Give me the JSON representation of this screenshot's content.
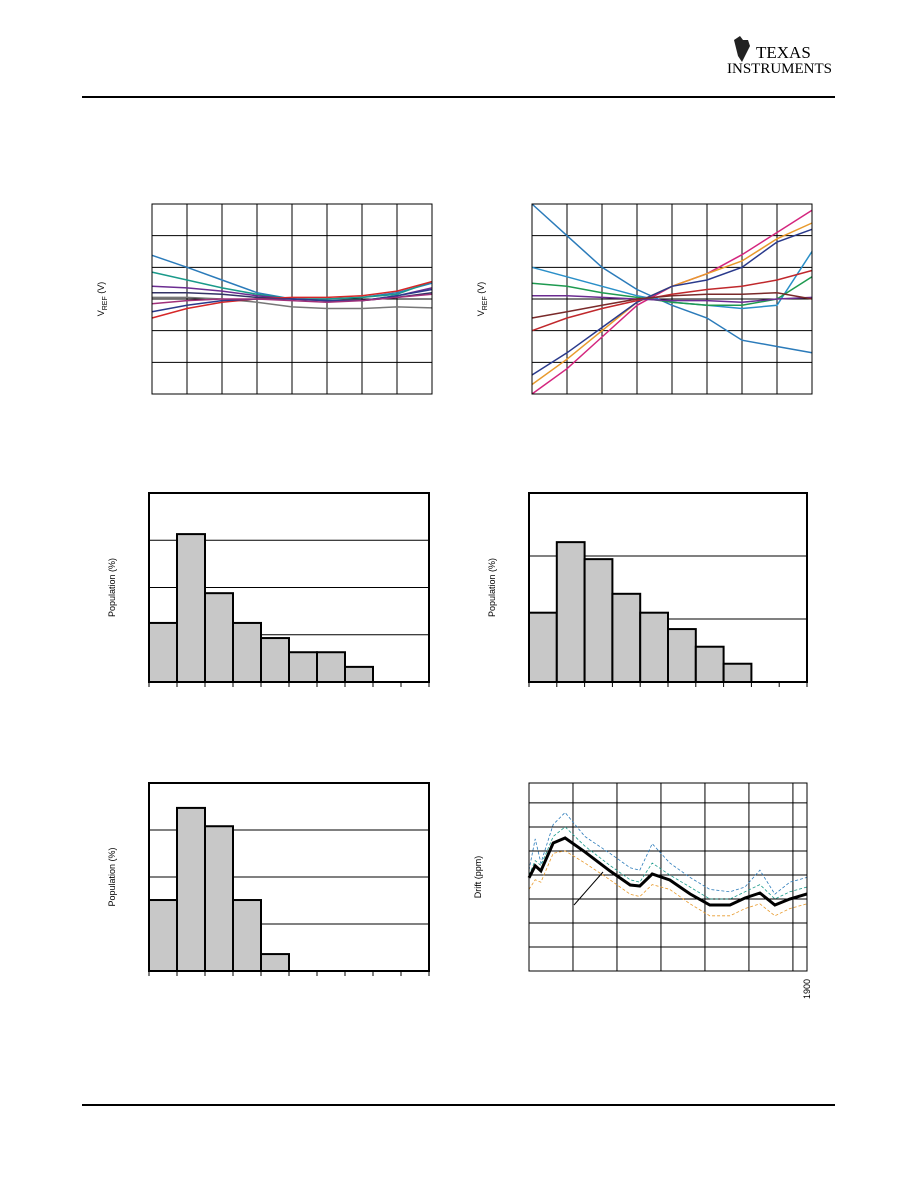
{
  "header": {
    "logo": [
      "TEXAS",
      "INSTRUMENTS"
    ]
  },
  "charts": [
    {
      "type": "line",
      "ylabel": {
        "main": "V",
        "sub": "REF",
        "unit": " (V)"
      },
      "x": [
        0,
        1,
        2,
        3,
        4,
        5,
        6,
        7,
        8
      ],
      "xlim": [
        0,
        8
      ],
      "xticks": [
        1,
        2,
        3,
        4,
        5,
        6,
        7
      ],
      "ylim": [
        0,
        6
      ],
      "yticks": [
        1,
        2,
        3,
        4,
        5
      ],
      "grid": true,
      "series": [
        {
          "color": "#2b7bba",
          "values": [
            4.38,
            4.0,
            3.6,
            3.2,
            3.0,
            3.0,
            3.05,
            3.2,
            3.5
          ]
        },
        {
          "color": "#1a9a8a",
          "values": [
            3.85,
            3.6,
            3.35,
            3.15,
            3.0,
            3.0,
            3.05,
            3.15,
            3.55
          ]
        },
        {
          "color": "#6b2c91",
          "values": [
            3.4,
            3.35,
            3.25,
            3.1,
            3.0,
            2.95,
            2.95,
            3.1,
            3.35
          ]
        },
        {
          "color": "#333366",
          "values": [
            3.2,
            3.2,
            3.15,
            3.05,
            3.0,
            2.95,
            2.95,
            3.05,
            3.2
          ]
        },
        {
          "color": "#777777",
          "values": [
            3.05,
            3.05,
            3.0,
            2.9,
            2.75,
            2.7,
            2.7,
            2.75,
            2.72
          ]
        },
        {
          "color": "#d62728",
          "values": [
            2.4,
            2.7,
            2.9,
            3.0,
            3.05,
            3.05,
            3.1,
            3.25,
            3.55
          ]
        },
        {
          "color": "#2a3a8c",
          "values": [
            2.6,
            2.8,
            2.95,
            3.0,
            3.0,
            2.95,
            2.95,
            3.1,
            3.3
          ]
        },
        {
          "color": "#a0307a",
          "values": [
            2.85,
            2.95,
            3.0,
            3.0,
            2.95,
            2.9,
            2.95,
            3.05,
            3.15
          ]
        }
      ]
    },
    {
      "type": "line",
      "ylabel": {
        "main": "V",
        "sub": "REF",
        "unit": " (V)"
      },
      "x": [
        0,
        1,
        2,
        3,
        4,
        5,
        6,
        7,
        8
      ],
      "xlim": [
        0,
        8
      ],
      "xticks": [
        1,
        2,
        3,
        4,
        5,
        6,
        7
      ],
      "ylim": [
        0,
        6
      ],
      "yticks": [
        1,
        2,
        3,
        4,
        5
      ],
      "grid": true,
      "series": [
        {
          "color": "#2b7bba",
          "values": [
            6.0,
            5.0,
            4.0,
            3.3,
            2.8,
            2.4,
            1.7,
            1.5,
            1.3
          ]
        },
        {
          "color": "#2a8fc8",
          "values": [
            4.0,
            3.7,
            3.4,
            3.1,
            2.9,
            2.8,
            2.7,
            2.8,
            4.5
          ]
        },
        {
          "color": "#d4267e",
          "values": [
            0.0,
            0.8,
            1.8,
            2.8,
            3.4,
            3.8,
            4.4,
            5.1,
            5.8
          ]
        },
        {
          "color": "#e89a2c",
          "values": [
            0.3,
            1.1,
            2.0,
            2.9,
            3.4,
            3.8,
            4.2,
            4.9,
            5.4
          ]
        },
        {
          "color": "#2a3a8c",
          "values": [
            0.6,
            1.3,
            2.1,
            2.9,
            3.4,
            3.6,
            4.0,
            4.8,
            5.2
          ]
        },
        {
          "color": "#c0282c",
          "values": [
            2.0,
            2.4,
            2.7,
            2.95,
            3.15,
            3.3,
            3.4,
            3.6,
            3.9
          ]
        },
        {
          "color": "#1e9a50",
          "values": [
            3.5,
            3.4,
            3.2,
            3.05,
            2.9,
            2.8,
            2.8,
            3.0,
            3.7
          ]
        },
        {
          "color": "#6b2c91",
          "values": [
            3.1,
            3.1,
            3.05,
            3.0,
            2.95,
            2.95,
            2.9,
            3.0,
            3.05
          ]
        },
        {
          "color": "#7a2a2a",
          "values": [
            2.4,
            2.6,
            2.8,
            3.0,
            3.1,
            3.15,
            3.15,
            3.2,
            3.0
          ]
        }
      ]
    },
    {
      "type": "histogram",
      "ylabel": "Population (%)",
      "bins": [
        0,
        1,
        2,
        3,
        4,
        5,
        6,
        7,
        8,
        9,
        10
      ],
      "values": [
        1.25,
        3.13,
        1.88,
        1.25,
        0.93,
        0.63,
        0.63,
        0.32,
        0,
        0
      ],
      "color": "#c8c8c8",
      "xlim": [
        0,
        10
      ],
      "ylim": [
        0,
        4
      ],
      "yticks": [
        1,
        2,
        3
      ],
      "grid": true
    },
    {
      "type": "histogram",
      "ylabel": "Population (%)",
      "bins": [
        0,
        1,
        2,
        3,
        4,
        5,
        6,
        7,
        8,
        9,
        10
      ],
      "values": [
        1.1,
        2.22,
        1.95,
        1.4,
        1.1,
        0.84,
        0.56,
        0.29,
        0,
        0
      ],
      "color": "#c8c8c8",
      "xlim": [
        0,
        10
      ],
      "ylim": [
        0,
        3
      ],
      "yticks": [
        1,
        2
      ],
      "grid": true
    },
    {
      "type": "histogram",
      "ylabel": "Population (%)",
      "bins": [
        0,
        1,
        2,
        3,
        4,
        5,
        6,
        7,
        8,
        9,
        10
      ],
      "values": [
        1.51,
        3.47,
        3.08,
        1.51,
        0.36,
        0,
        0,
        0,
        0,
        0
      ],
      "color": "#c8c8c8",
      "xlim": [
        0,
        10
      ],
      "ylim": [
        0,
        4
      ],
      "yticks": [
        1,
        2,
        3
      ],
      "grid": true
    },
    {
      "type": "line",
      "ylabel": "Drift (ppm)",
      "x": [
        0,
        0.14,
        0.27,
        0.55,
        0.82,
        1.27,
        1.84,
        2.3,
        2.52,
        2.8,
        3.2,
        3.66,
        4.11,
        4.57,
        4.91,
        5.25,
        5.59,
        5.93,
        6.32
      ],
      "xlim": [
        0,
        6.32
      ],
      "xticks": [
        1,
        2,
        3,
        4,
        5,
        6,
        {
          "value": 6.32,
          "label": "1900"
        }
      ],
      "ylim": [
        0,
        7.83
      ],
      "yticks": [
        1,
        2,
        3,
        4,
        5,
        6,
        7
      ],
      "grid": true,
      "series": [
        {
          "color": "#2b7bba",
          "style": "dashed",
          "values": [
            4.2,
            5.5,
            4.5,
            6.1,
            6.6,
            5.6,
            4.9,
            4.3,
            4.2,
            5.3,
            4.5,
            3.9,
            3.4,
            3.3,
            3.5,
            4.2,
            3.2,
            3.7,
            3.9
          ]
        },
        {
          "color": "#1a9a8a",
          "style": "dashed",
          "values": [
            4.0,
            4.6,
            4.4,
            5.6,
            6.0,
            5.2,
            4.4,
            3.8,
            3.7,
            4.5,
            4.0,
            3.5,
            3.0,
            3.0,
            3.3,
            3.6,
            3.0,
            3.3,
            3.5
          ]
        },
        {
          "color": "#e89a2c",
          "style": "dashed",
          "values": [
            3.4,
            3.8,
            3.7,
            4.9,
            5.0,
            4.5,
            3.8,
            3.2,
            3.1,
            3.6,
            3.4,
            2.8,
            2.3,
            2.3,
            2.6,
            2.8,
            2.3,
            2.6,
            2.8
          ]
        },
        {
          "color": "#000000",
          "style": "bold",
          "values": [
            3.88,
            4.38,
            4.17,
            5.33,
            5.54,
            4.96,
            4.17,
            3.58,
            3.54,
            4.04,
            3.79,
            3.21,
            2.75,
            2.75,
            3.04,
            3.25,
            2.75,
            3.0,
            3.21
          ]
        }
      ]
    }
  ]
}
